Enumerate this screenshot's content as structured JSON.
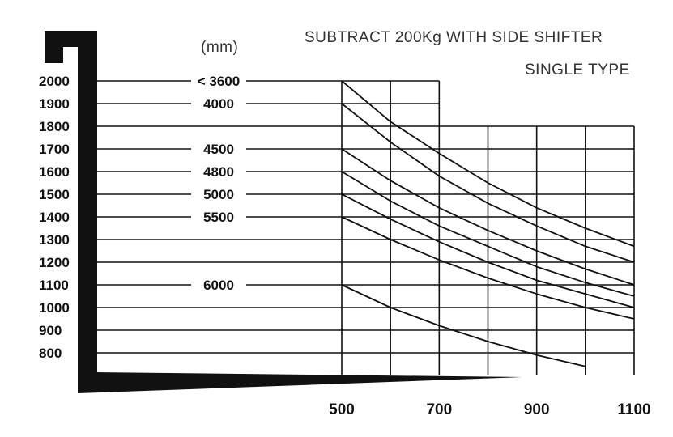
{
  "notes": {
    "title": "SUBTRACT 200Kg WITH SIDE SHIFTER",
    "subtitle": "SINGLE TYPE"
  },
  "chart_data": {
    "type": "line",
    "title": "SUBTRACT 200Kg WITH SIDE SHIFTER",
    "subtitle": "SINGLE TYPE",
    "unit_label": "(mm)",
    "xlabel": "",
    "ylabel": "",
    "x_ticks": [
      "500",
      "700",
      "900",
      "1100"
    ],
    "y_ticks": [
      "800",
      "900",
      "1000",
      "1100",
      "1200",
      "1300",
      "1400",
      "1500",
      "1600",
      "1700",
      "1800",
      "1900",
      "2000"
    ],
    "xlim": [
      500,
      1100
    ],
    "ylim": [
      800,
      2000
    ],
    "grid": true,
    "series": [
      {
        "name": "< 3600",
        "x": [
          500,
          600,
          700,
          800,
          900,
          1000,
          1100
        ],
        "y": [
          2000,
          1820,
          1680,
          1550,
          1440,
          1350,
          1270
        ]
      },
      {
        "name": "4000",
        "x": [
          500,
          600,
          700,
          800,
          900,
          1000,
          1100
        ],
        "y": [
          1900,
          1730,
          1580,
          1460,
          1360,
          1270,
          1200
        ]
      },
      {
        "name": "4500",
        "x": [
          500,
          600,
          700,
          800,
          900,
          1000,
          1100
        ],
        "y": [
          1700,
          1560,
          1440,
          1340,
          1250,
          1170,
          1100
        ]
      },
      {
        "name": "4800",
        "x": [
          500,
          600,
          700,
          800,
          900,
          1000,
          1100
        ],
        "y": [
          1600,
          1470,
          1360,
          1270,
          1180,
          1110,
          1050
        ]
      },
      {
        "name": "5000",
        "x": [
          500,
          600,
          700,
          800,
          900,
          1000,
          1100
        ],
        "y": [
          1500,
          1390,
          1290,
          1200,
          1120,
          1060,
          1000
        ]
      },
      {
        "name": "5500",
        "x": [
          500,
          600,
          700,
          800,
          900,
          1000,
          1100
        ],
        "y": [
          1400,
          1300,
          1210,
          1130,
          1060,
          1000,
          950
        ]
      },
      {
        "name": "6000",
        "x": [
          500,
          600,
          700,
          800,
          900,
          1000
        ],
        "y": [
          1100,
          1000,
          920,
          850,
          790,
          740
        ]
      }
    ]
  }
}
